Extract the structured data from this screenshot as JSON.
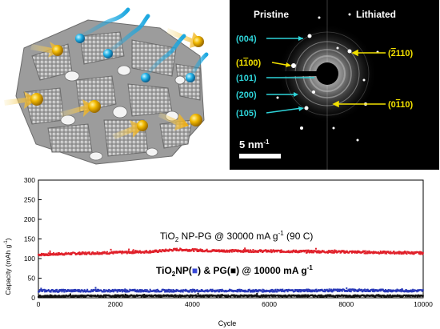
{
  "saed": {
    "pristine_label": "Pristine",
    "lithiated_label": "Lithiated",
    "left_planes": [
      "(004)",
      "(101)",
      "(200)",
      "(105)"
    ],
    "right_planes": [
      {
        "prefix": "(",
        "bar": "2",
        "rest": "110)"
      },
      {
        "prefix": "(0",
        "bar": "1",
        "rest": "10)"
      }
    ],
    "left_special": {
      "prefix": "(1",
      "bar": "1",
      "rest": "00)"
    },
    "scale_label": "5 nm",
    "scale_sup": "-1",
    "colors": {
      "cyan": "#2ed3d8",
      "yellow": "#f2e000"
    }
  },
  "chart_data": {
    "type": "scatter",
    "xlabel": "Cycle",
    "ylabel": "Capacity (mAh g",
    "ylabel_sup": "-1",
    "ylabel_end": ")",
    "xlim": [
      0,
      10000
    ],
    "ylim": [
      0,
      300
    ],
    "xticks": [
      0,
      2000,
      4000,
      6000,
      8000,
      10000
    ],
    "yticks": [
      0,
      50,
      100,
      150,
      200,
      250,
      300
    ],
    "grid": false,
    "annotation_top": {
      "part1": "TiO",
      "sub": "2",
      "part2": " NP-PG  @ 30000 mA g",
      "sup": "-1",
      "part3": " (90 C)"
    },
    "annotation_bottom": {
      "part1": "TiO",
      "sub": "2",
      "part2": "NP(",
      "part3": ") & PG(",
      "part4": ")  @ 10000 mA g",
      "sup": "-1"
    },
    "series": [
      {
        "color": "#e0202a",
        "level": [
          [
            0,
            110
          ],
          [
            1000,
            113
          ],
          [
            2000,
            115
          ],
          [
            3000,
            118
          ],
          [
            3600,
            123
          ],
          [
            4500,
            120
          ],
          [
            6000,
            119
          ],
          [
            8000,
            117
          ],
          [
            10000,
            114
          ]
        ],
        "band": 3
      },
      {
        "color": "#2a3ab8",
        "level": [
          [
            0,
            18
          ],
          [
            2000,
            18
          ],
          [
            4000,
            18
          ],
          [
            6000,
            18
          ],
          [
            8000,
            19
          ],
          [
            10000,
            18
          ]
        ],
        "band": 3
      },
      {
        "color": "#111111",
        "level": [
          [
            0,
            4
          ],
          [
            2000,
            5
          ],
          [
            4000,
            5
          ],
          [
            6000,
            5
          ],
          [
            8000,
            5
          ],
          [
            10000,
            5
          ]
        ],
        "band": 2
      }
    ]
  }
}
